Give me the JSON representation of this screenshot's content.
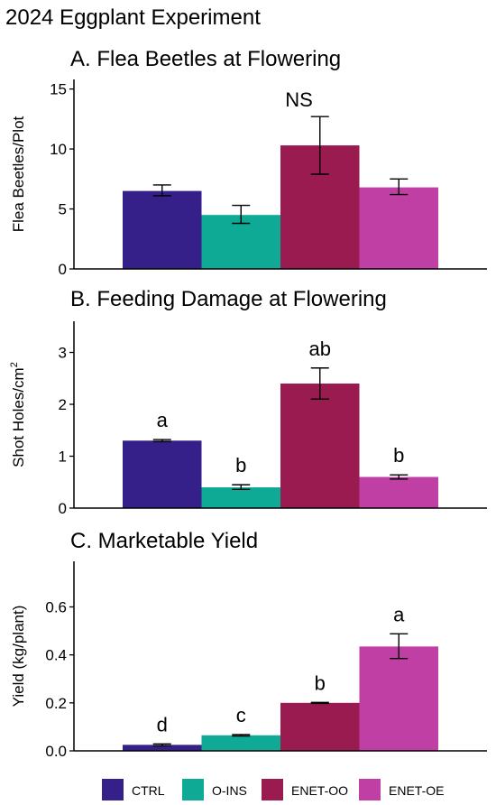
{
  "page_title": "2024 Eggplant Experiment",
  "legend": {
    "placement": "bottom",
    "items": [
      {
        "label": "CTRL",
        "color": "#35208A"
      },
      {
        "label": "O-INS",
        "color": "#0FAA96"
      },
      {
        "label": "ENET-OO",
        "color": "#991B4F"
      },
      {
        "label": "ENET-OE",
        "color": "#C03FA4"
      }
    ]
  },
  "chart_data": [
    {
      "type": "bar",
      "title": "A. Flea Beetles at Flowering",
      "ylabel": "Flea Beetles/Plot",
      "ylim": [
        0,
        15.8
      ],
      "yticks": [
        0,
        5,
        10,
        15
      ],
      "grid": false,
      "categories": [
        "CTRL",
        "O-INS",
        "ENET-OO",
        "ENET-OE"
      ],
      "values": [
        6.5,
        4.5,
        10.3,
        6.8
      ],
      "error_low": [
        6.1,
        3.8,
        7.9,
        6.2
      ],
      "error_high": [
        7.0,
        5.3,
        12.7,
        7.5
      ],
      "annotation": "NS",
      "letters": []
    },
    {
      "type": "bar",
      "title": "B. Feeding Damage at Flowering",
      "ylabel": "Shot Holes/cm",
      "ylabel_superscript": "2",
      "ylim": [
        0,
        3.6
      ],
      "yticks": [
        0,
        1,
        2,
        3
      ],
      "grid": false,
      "categories": [
        "CTRL",
        "O-INS",
        "ENET-OO",
        "ENET-OE"
      ],
      "values": [
        1.3,
        0.4,
        2.4,
        0.6
      ],
      "error_low": [
        1.28,
        0.36,
        2.1,
        0.56
      ],
      "error_high": [
        1.32,
        0.45,
        2.7,
        0.64
      ],
      "annotation": "",
      "letters": [
        "a",
        "b",
        "ab",
        "b"
      ]
    },
    {
      "type": "bar",
      "title": "C. Marketable Yield",
      "ylabel": "Yield (kg/plant)",
      "ylim": [
        0,
        0.79
      ],
      "yticks": [
        0.0,
        0.2,
        0.4,
        0.6
      ],
      "ytick_labels": [
        "0.0",
        "0.2",
        "0.4",
        "0.6"
      ],
      "grid": false,
      "categories": [
        "CTRL",
        "O-INS",
        "ENET-OO",
        "ENET-OE"
      ],
      "values": [
        0.025,
        0.065,
        0.2,
        0.435
      ],
      "error_low": [
        0.021,
        0.062,
        0.198,
        0.385
      ],
      "error_high": [
        0.029,
        0.068,
        0.202,
        0.488
      ],
      "annotation": "",
      "letters": [
        "d",
        "c",
        "b",
        "a"
      ]
    }
  ]
}
